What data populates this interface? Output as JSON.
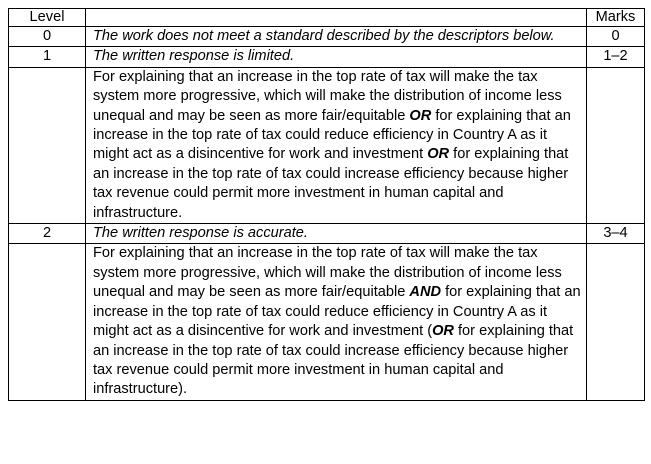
{
  "header": {
    "level": "Level",
    "marks": "Marks"
  },
  "rows": [
    {
      "level": "0",
      "descriptor": "The work does not meet a standard described by the descriptors below.",
      "marks": "0"
    },
    {
      "level": "1",
      "descriptor": "The written response is limited.",
      "marks": "1–2",
      "detail": {
        "part1": "For explaining that an increase in the top rate of tax will make the tax system more progressive, which will make the distribution of income less unequal and may be seen as more fair/equitable ",
        "conn1": "OR",
        "part2": " for explaining that an increase in the top rate of tax could reduce efficiency in Country A as it might act as a disincentive for work and investment ",
        "conn2": "OR",
        "part3": " for explaining that an increase in the top rate of tax could increase efficiency because higher tax revenue could permit more investment in human capital and infrastructure."
      }
    },
    {
      "level": "2",
      "descriptor": "The written response is accurate.",
      "marks": "3–4",
      "detail": {
        "part1": "For explaining that an increase in the top rate of tax will make the tax system more progressive, which will make the distribution of income less unequal and may be seen as more fair/equitable ",
        "conn1": "AND",
        "part2": " for explaining that an increase in the top rate of tax could reduce efficiency in Country A as it might act as a disincentive for work and investment (",
        "conn2": "OR",
        "part3": " for explaining that an increase in the top rate of tax could increase efficiency because higher tax revenue could permit more investment in human capital and infrastructure)."
      }
    }
  ]
}
